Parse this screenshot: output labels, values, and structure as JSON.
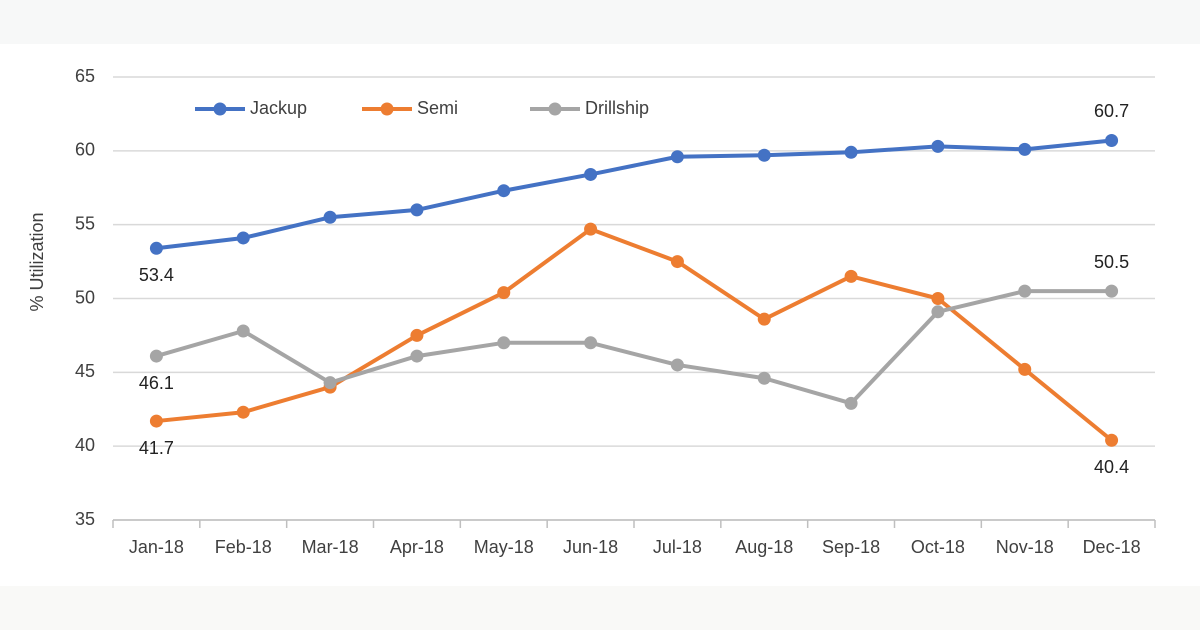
{
  "chart_data": {
    "type": "line",
    "y_label": "% Utilization",
    "categories": [
      "Jan-18",
      "Feb-18",
      "Mar-18",
      "Apr-18",
      "May-18",
      "Jun-18",
      "Jul-18",
      "Aug-18",
      "Sep-18",
      "Oct-18",
      "Nov-18",
      "Dec-18"
    ],
    "series": [
      {
        "name": "Jackup",
        "color": "#4472c4",
        "values": [
          53.4,
          54.1,
          55.5,
          56.0,
          57.3,
          58.4,
          59.6,
          59.7,
          59.9,
          60.3,
          60.1,
          60.7
        ],
        "label_position": [
          "below",
          "above"
        ]
      },
      {
        "name": "Semi",
        "color": "#ed7d31",
        "values": [
          41.7,
          42.3,
          44.0,
          47.5,
          50.4,
          54.7,
          52.5,
          48.6,
          51.5,
          50.0,
          45.2,
          40.4
        ],
        "label_position": [
          "below",
          "below"
        ]
      },
      {
        "name": "Drillship",
        "color": "#a5a5a5",
        "values": [
          46.1,
          47.8,
          44.3,
          46.1,
          47.0,
          47.0,
          45.5,
          44.6,
          42.9,
          49.1,
          50.5,
          50.5
        ],
        "label_position": [
          "below",
          "above"
        ]
      }
    ],
    "data_labels": "first-last",
    "ylim": [
      35,
      65
    ],
    "yticks": [
      35,
      40,
      45,
      50,
      55,
      60,
      65
    ],
    "grid": true,
    "legend": "top"
  }
}
